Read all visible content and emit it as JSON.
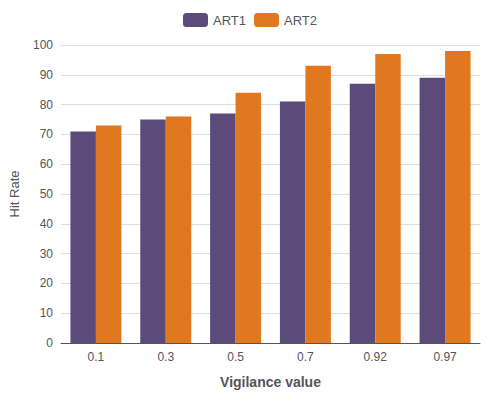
{
  "chart_data": {
    "type": "bar",
    "categories": [
      "0.1",
      "0.3",
      "0.5",
      "0.7",
      "0.92",
      "0.97"
    ],
    "series": [
      {
        "name": "ART1",
        "color": "#5b4a7a",
        "values": [
          71,
          75,
          77,
          81,
          87,
          89
        ]
      },
      {
        "name": "ART2",
        "color": "#e07820",
        "values": [
          73,
          76,
          84,
          93,
          97,
          98
        ]
      }
    ],
    "xlabel": "Vigilance value",
    "ylabel": "Hit Rate",
    "ylim": [
      0,
      100
    ],
    "yticks": [
      0,
      10,
      20,
      30,
      40,
      50,
      60,
      70,
      80,
      90,
      100
    ],
    "grid": true,
    "legend": "top"
  }
}
